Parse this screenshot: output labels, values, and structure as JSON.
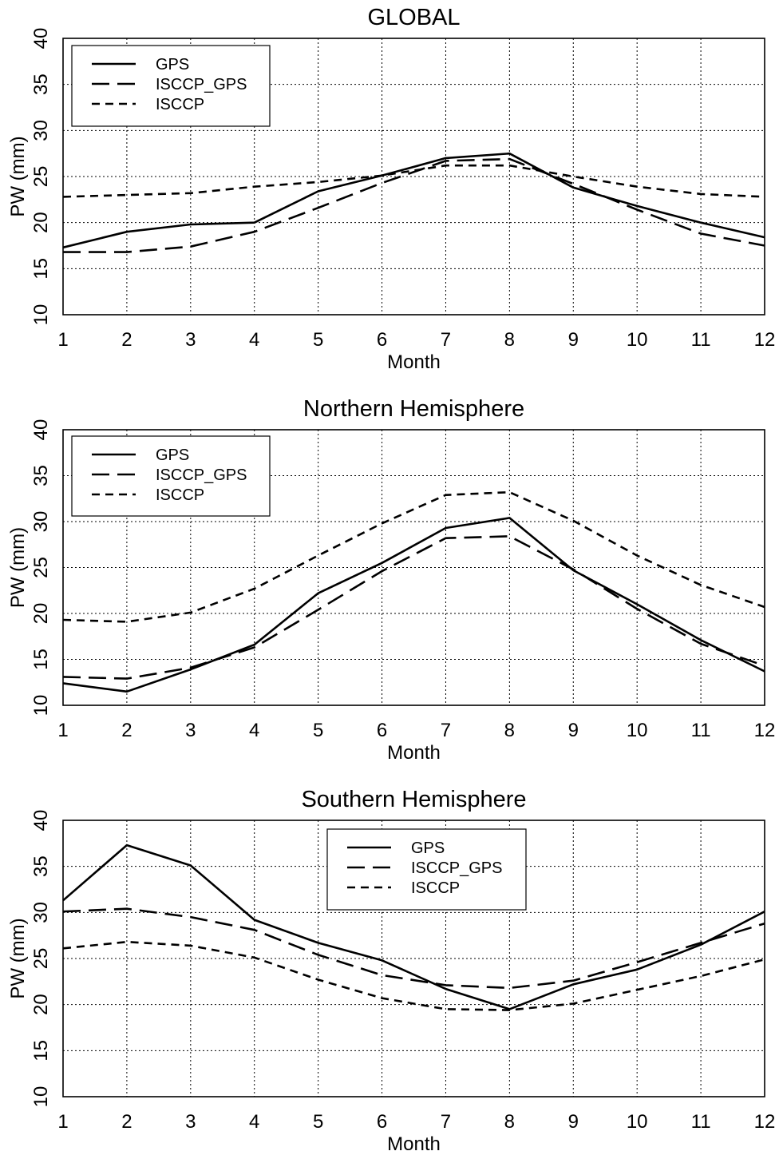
{
  "chart_data": [
    {
      "type": "line",
      "title": "GLOBAL",
      "xlabel": "Month",
      "ylabel": "PW (mm)",
      "x": [
        1,
        2,
        3,
        4,
        5,
        6,
        7,
        8,
        9,
        10,
        11,
        12
      ],
      "xlim": [
        1,
        12
      ],
      "ylim": [
        10,
        40
      ],
      "yticks": [
        10,
        15,
        20,
        25,
        30,
        35,
        40
      ],
      "grid": true,
      "legend_position": "top-left",
      "series": [
        {
          "name": "GPS",
          "style": "solid",
          "values": [
            17.3,
            19.0,
            19.8,
            20.0,
            23.4,
            25.1,
            27.0,
            27.5,
            23.8,
            21.8,
            20.0,
            18.4
          ]
        },
        {
          "name": "ISCCP_GPS",
          "style": "long-dash",
          "values": [
            16.8,
            16.8,
            17.4,
            19.0,
            21.6,
            24.3,
            26.7,
            26.9,
            24.2,
            21.4,
            18.8,
            17.5
          ]
        },
        {
          "name": "ISCCP",
          "style": "short-dash",
          "values": [
            22.8,
            23.0,
            23.2,
            23.9,
            24.4,
            25.1,
            26.2,
            26.2,
            25.0,
            23.9,
            23.1,
            22.8
          ]
        }
      ]
    },
    {
      "type": "line",
      "title": "Northern Hemisphere",
      "xlabel": "Month",
      "ylabel": "PW (mm)",
      "x": [
        1,
        2,
        3,
        4,
        5,
        6,
        7,
        8,
        9,
        10,
        11,
        12
      ],
      "xlim": [
        1,
        12
      ],
      "ylim": [
        10,
        40
      ],
      "yticks": [
        10,
        15,
        20,
        25,
        30,
        35,
        40
      ],
      "grid": true,
      "legend_position": "top-left",
      "series": [
        {
          "name": "GPS",
          "style": "solid",
          "values": [
            12.4,
            11.5,
            13.9,
            16.6,
            22.2,
            25.5,
            29.3,
            30.4,
            24.7,
            21.0,
            17.1,
            13.7
          ]
        },
        {
          "name": "ISCCP_GPS",
          "style": "long-dash",
          "values": [
            13.1,
            12.9,
            14.1,
            16.3,
            20.4,
            24.6,
            28.2,
            28.4,
            24.8,
            20.5,
            16.7,
            14.3
          ]
        },
        {
          "name": "ISCCP",
          "style": "short-dash",
          "values": [
            19.3,
            19.1,
            20.1,
            22.7,
            26.3,
            29.8,
            32.9,
            33.2,
            30.1,
            26.3,
            23.1,
            20.7
          ]
        }
      ]
    },
    {
      "type": "line",
      "title": "Southern Hemisphere",
      "xlabel": "Month",
      "ylabel": "PW (mm)",
      "x": [
        1,
        2,
        3,
        4,
        5,
        6,
        7,
        8,
        9,
        10,
        11,
        12
      ],
      "xlim": [
        1,
        12
      ],
      "ylim": [
        10,
        40
      ],
      "yticks": [
        10,
        15,
        20,
        25,
        30,
        35,
        40
      ],
      "grid": true,
      "legend_position": "top-center",
      "series": [
        {
          "name": "GPS",
          "style": "solid",
          "values": [
            31.3,
            37.3,
            35.1,
            29.2,
            26.7,
            24.8,
            21.7,
            19.5,
            22.2,
            23.8,
            26.5,
            30.1
          ]
        },
        {
          "name": "ISCCP_GPS",
          "style": "long-dash",
          "values": [
            30.1,
            30.4,
            29.5,
            28.1,
            25.4,
            23.2,
            22.1,
            21.8,
            22.6,
            24.6,
            26.7,
            28.8
          ]
        },
        {
          "name": "ISCCP",
          "style": "short-dash",
          "values": [
            26.1,
            26.8,
            26.4,
            25.1,
            22.7,
            20.7,
            19.5,
            19.4,
            20.1,
            21.6,
            23.1,
            24.9
          ]
        }
      ]
    }
  ],
  "colors": {
    "line": "#000000",
    "grid": "#000000",
    "background": "#ffffff"
  }
}
